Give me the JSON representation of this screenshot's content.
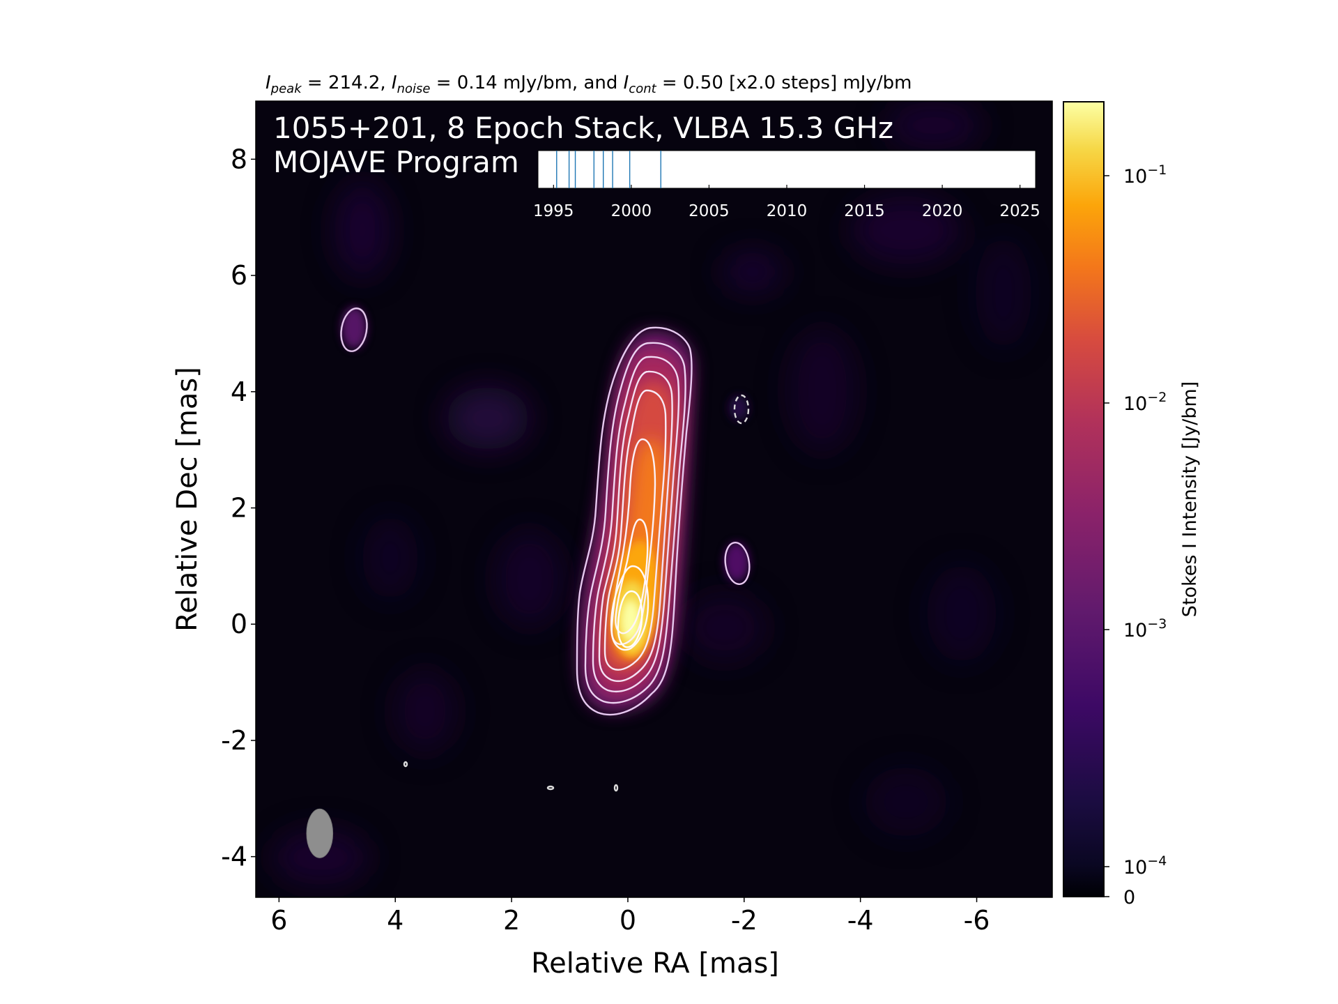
{
  "figure": {
    "header": {
      "peak_sym": "I",
      "peak_sub": "peak",
      "peak_text": " = 214.2, ",
      "noise_sym": "I",
      "noise_sub": "noise",
      "noise_text": " = 0.14 mJy/bm, and ",
      "cont_sym": "I",
      "cont_sub": "cont",
      "cont_text": " = 0.50 [x2.0 steps] mJy/bm"
    },
    "title_line1": "1055+201, 8 Epoch Stack, VLBA 15.3 GHz",
    "title_line2": "MOJAVE Program"
  },
  "chart_data": {
    "type": "heatmap",
    "xlabel": "Relative RA [mas]",
    "ylabel": "Relative Dec [mas]",
    "xlim": [
      6.4,
      -7.3
    ],
    "ylim": [
      -4.7,
      9
    ],
    "x_ticks": [
      "6",
      "4",
      "2",
      "0",
      "-2",
      "-4",
      "-6"
    ],
    "x_tick_values": [
      6,
      4,
      2,
      0,
      -2,
      -4,
      -6
    ],
    "y_ticks": [
      "8",
      "6",
      "4",
      "2",
      "0",
      "-2",
      "-4"
    ],
    "y_tick_values": [
      8,
      6,
      4,
      2,
      0,
      -2,
      -4
    ],
    "colorbar": {
      "label": "Stokes I Intensity [Jy/bm]",
      "scale": "log",
      "colormap": "inferno",
      "ticks": [
        {
          "base": "10",
          "exp": "−1",
          "value": 0.1
        },
        {
          "base": "10",
          "exp": "−2",
          "value": 0.01
        },
        {
          "base": "10",
          "exp": "−3",
          "value": 0.001
        },
        {
          "base": "10",
          "exp": "−4",
          "value": 0.0001
        },
        {
          "base": "0",
          "exp": "",
          "value": 0
        }
      ],
      "colors": [
        "#000004",
        "#1b0c41",
        "#4a0c6b",
        "#781c6d",
        "#a52c60",
        "#cf4446",
        "#ed6925",
        "#fb9b06",
        "#f7d13d",
        "#fcffa4"
      ]
    },
    "source": {
      "peak_jy_per_beam": 0.2142,
      "peak_position": [
        0,
        0
      ],
      "jet_position_angle_deg": -8,
      "contour_start_mjy": 0.5,
      "contour_step": 2.0
    },
    "beam": {
      "center": [
        5.3,
        -3.6
      ],
      "major_mas": 1.05,
      "minor_mas": 0.55,
      "position_angle_deg": 0
    },
    "epoch_timeline": {
      "ticks": [
        "1995",
        "2000",
        "2005",
        "2010",
        "2015",
        "2020",
        "2025"
      ],
      "tick_values": [
        1995,
        2000,
        2005,
        2010,
        2015,
        2020,
        2025
      ],
      "range": [
        1994,
        2026
      ],
      "epochs": [
        1995.2,
        1996.0,
        1996.4,
        1997.6,
        1998.2,
        1998.8,
        1999.9,
        2001.9
      ],
      "line_color": "#1f77b4"
    }
  }
}
